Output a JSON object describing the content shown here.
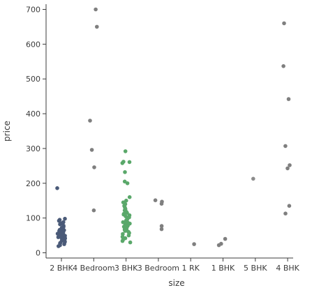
{
  "chart_data": {
    "type": "scatter",
    "style": "strip",
    "xlabel": "size",
    "ylabel": "price",
    "categories": [
      "2 BHK",
      "4 Bedroom",
      "3 BHK",
      "3 Bedroom",
      "1 RK",
      "1 BHK",
      "5 BHK",
      "4 BHK"
    ],
    "ylim": [
      -15,
      715
    ],
    "yticks": [
      0,
      100,
      200,
      300,
      400,
      500,
      600,
      700
    ],
    "grid": false,
    "legend": "none",
    "colors": {
      "2 BHK": "#4a5a78",
      "4 Bedroom": "#7f7f7f",
      "3 BHK": "#5aa86a",
      "3 Bedroom": "#7f7f7f",
      "1 RK": "#7f7f7f",
      "1 BHK": "#7f7f7f",
      "5 BHK": "#8c8c8c",
      "4 BHK": "#7f7f7f"
    },
    "points": [
      {
        "category": "2 BHK",
        "price": 186
      },
      {
        "category": "2 BHK",
        "price": 98
      },
      {
        "category": "2 BHK",
        "price": 95
      },
      {
        "category": "2 BHK",
        "price": 92
      },
      {
        "category": "2 BHK",
        "price": 88
      },
      {
        "category": "2 BHK",
        "price": 85
      },
      {
        "category": "2 BHK",
        "price": 82
      },
      {
        "category": "2 BHK",
        "price": 78
      },
      {
        "category": "2 BHK",
        "price": 75
      },
      {
        "category": "2 BHK",
        "price": 72
      },
      {
        "category": "2 BHK",
        "price": 70
      },
      {
        "category": "2 BHK",
        "price": 68
      },
      {
        "category": "2 BHK",
        "price": 65
      },
      {
        "category": "2 BHK",
        "price": 63
      },
      {
        "category": "2 BHK",
        "price": 61
      },
      {
        "category": "2 BHK",
        "price": 59
      },
      {
        "category": "2 BHK",
        "price": 57
      },
      {
        "category": "2 BHK",
        "price": 55
      },
      {
        "category": "2 BHK",
        "price": 53
      },
      {
        "category": "2 BHK",
        "price": 51
      },
      {
        "category": "2 BHK",
        "price": 49
      },
      {
        "category": "2 BHK",
        "price": 47
      },
      {
        "category": "2 BHK",
        "price": 45
      },
      {
        "category": "2 BHK",
        "price": 43
      },
      {
        "category": "2 BHK",
        "price": 41
      },
      {
        "category": "2 BHK",
        "price": 39
      },
      {
        "category": "2 BHK",
        "price": 37
      },
      {
        "category": "2 BHK",
        "price": 35
      },
      {
        "category": "2 BHK",
        "price": 33
      },
      {
        "category": "2 BHK",
        "price": 31
      },
      {
        "category": "2 BHK",
        "price": 29
      },
      {
        "category": "2 BHK",
        "price": 27
      },
      {
        "category": "2 BHK",
        "price": 25
      },
      {
        "category": "2 BHK",
        "price": 22
      },
      {
        "category": "2 BHK",
        "price": 19
      },
      {
        "category": "2 BHK",
        "price": 66
      },
      {
        "category": "2 BHK",
        "price": 58
      },
      {
        "category": "2 BHK",
        "price": 48
      },
      {
        "category": "2 BHK",
        "price": 42
      },
      {
        "category": "2 BHK",
        "price": 36
      },
      {
        "category": "4 Bedroom",
        "price": 700
      },
      {
        "category": "4 Bedroom",
        "price": 650
      },
      {
        "category": "4 Bedroom",
        "price": 380
      },
      {
        "category": "4 Bedroom",
        "price": 296
      },
      {
        "category": "4 Bedroom",
        "price": 246
      },
      {
        "category": "4 Bedroom",
        "price": 122
      },
      {
        "category": "3 BHK",
        "price": 292
      },
      {
        "category": "3 BHK",
        "price": 262
      },
      {
        "category": "3 BHK",
        "price": 261
      },
      {
        "category": "3 BHK",
        "price": 258
      },
      {
        "category": "3 BHK",
        "price": 232
      },
      {
        "category": "3 BHK",
        "price": 205
      },
      {
        "category": "3 BHK",
        "price": 200
      },
      {
        "category": "3 BHK",
        "price": 160
      },
      {
        "category": "3 BHK",
        "price": 150
      },
      {
        "category": "3 BHK",
        "price": 145
      },
      {
        "category": "3 BHK",
        "price": 140
      },
      {
        "category": "3 BHK",
        "price": 135
      },
      {
        "category": "3 BHK",
        "price": 130
      },
      {
        "category": "3 BHK",
        "price": 126
      },
      {
        "category": "3 BHK",
        "price": 122
      },
      {
        "category": "3 BHK",
        "price": 118
      },
      {
        "category": "3 BHK",
        "price": 115
      },
      {
        "category": "3 BHK",
        "price": 112
      },
      {
        "category": "3 BHK",
        "price": 108
      },
      {
        "category": "3 BHK",
        "price": 105
      },
      {
        "category": "3 BHK",
        "price": 102
      },
      {
        "category": "3 BHK",
        "price": 99
      },
      {
        "category": "3 BHK",
        "price": 96
      },
      {
        "category": "3 BHK",
        "price": 93
      },
      {
        "category": "3 BHK",
        "price": 90
      },
      {
        "category": "3 BHK",
        "price": 87
      },
      {
        "category": "3 BHK",
        "price": 84
      },
      {
        "category": "3 BHK",
        "price": 81
      },
      {
        "category": "3 BHK",
        "price": 78
      },
      {
        "category": "3 BHK",
        "price": 75
      },
      {
        "category": "3 BHK",
        "price": 72
      },
      {
        "category": "3 BHK",
        "price": 69
      },
      {
        "category": "3 BHK",
        "price": 66
      },
      {
        "category": "3 BHK",
        "price": 63
      },
      {
        "category": "3 BHK",
        "price": 60
      },
      {
        "category": "3 BHK",
        "price": 57
      },
      {
        "category": "3 BHK",
        "price": 54
      },
      {
        "category": "3 BHK",
        "price": 50
      },
      {
        "category": "3 BHK",
        "price": 46
      },
      {
        "category": "3 BHK",
        "price": 42
      },
      {
        "category": "3 BHK",
        "price": 38
      },
      {
        "category": "3 BHK",
        "price": 34
      },
      {
        "category": "3 BHK",
        "price": 30
      },
      {
        "category": "3 BHK",
        "price": 110
      },
      {
        "category": "3 BHK",
        "price": 100
      },
      {
        "category": "3 BHK",
        "price": 88
      },
      {
        "category": "3 BHK",
        "price": 76
      },
      {
        "category": "3 BHK",
        "price": 64
      },
      {
        "category": "3 Bedroom",
        "price": 151
      },
      {
        "category": "3 Bedroom",
        "price": 147
      },
      {
        "category": "3 Bedroom",
        "price": 141
      },
      {
        "category": "3 Bedroom",
        "price": 77
      },
      {
        "category": "3 Bedroom",
        "price": 68
      },
      {
        "category": "1 RK",
        "price": 25
      },
      {
        "category": "1 BHK",
        "price": 40
      },
      {
        "category": "1 BHK",
        "price": 26
      },
      {
        "category": "1 BHK",
        "price": 22
      },
      {
        "category": "5 BHK",
        "price": 213
      },
      {
        "category": "4 BHK",
        "price": 660
      },
      {
        "category": "4 BHK",
        "price": 537
      },
      {
        "category": "4 BHK",
        "price": 442
      },
      {
        "category": "4 BHK",
        "price": 307
      },
      {
        "category": "4 BHK",
        "price": 252
      },
      {
        "category": "4 BHK",
        "price": 243
      },
      {
        "category": "4 BHK",
        "price": 135
      },
      {
        "category": "4 BHK",
        "price": 113
      }
    ]
  }
}
